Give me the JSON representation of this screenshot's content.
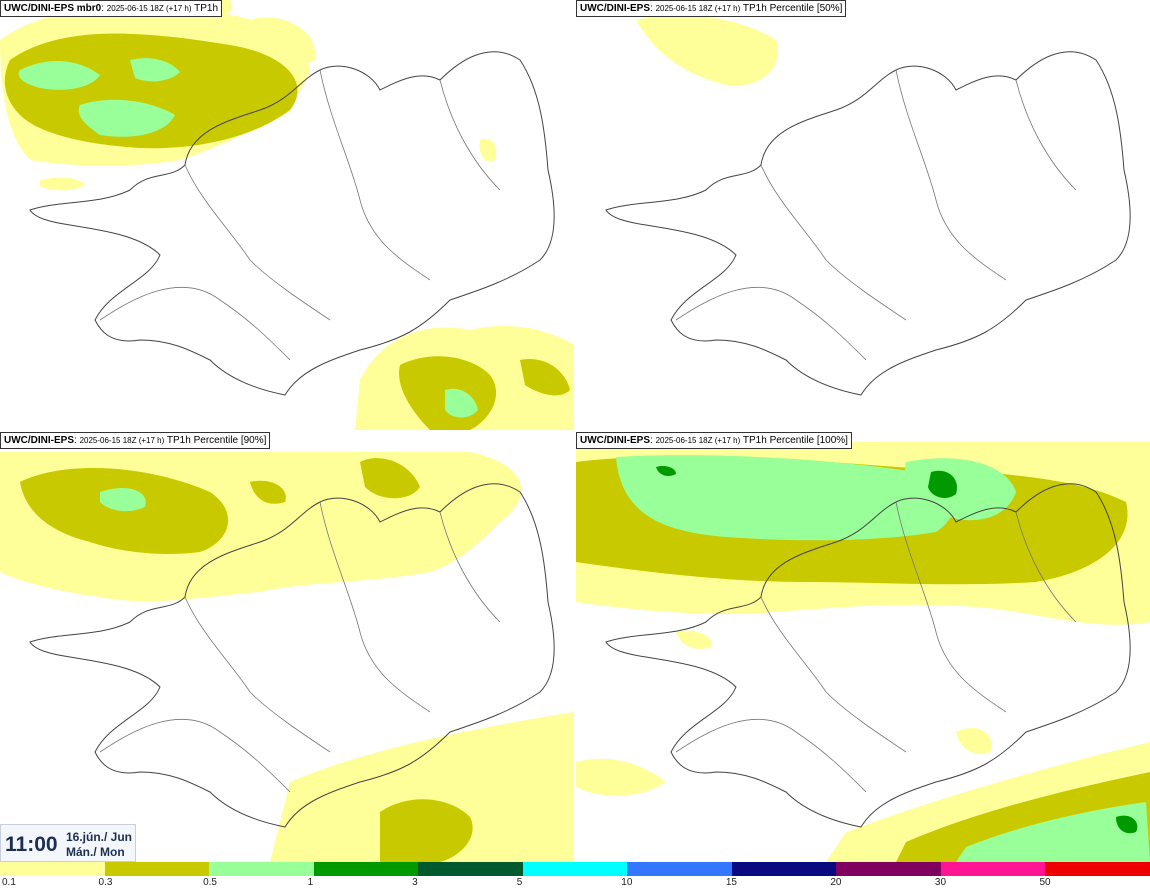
{
  "panels": [
    {
      "source": "UWC/DINI-EPS mbr0",
      "run": "2025-06-15 18Z (+17 h)",
      "field": "TP1h"
    },
    {
      "source": "UWC/DINI-EPS",
      "run": "2025-06-15 18Z (+17 h)",
      "field": "TP1h Percentile [50%]"
    },
    {
      "source": "UWC/DINI-EPS",
      "run": "2025-06-15 18Z (+17 h)",
      "field": "TP1h Percentile [90%]"
    },
    {
      "source": "UWC/DINI-EPS",
      "run": "2025-06-15 18Z (+17 h)",
      "field": "TP1h Percentile [100%]"
    }
  ],
  "valid_time": {
    "time": "11:00",
    "date": "16.jún./ Jun",
    "weekday": "Mán./ Mon"
  },
  "legend": {
    "labels": [
      "0.1",
      "0.3",
      "0.5",
      "1",
      "3",
      "5",
      "10",
      "15",
      "20",
      "30",
      "50"
    ],
    "colors": [
      "#ffff9a",
      "#c9c900",
      "#99ff99",
      "#009900",
      "#005a2e",
      "#00ffff",
      "#3377ff",
      "#0a0a80",
      "#800060",
      "#ff1493",
      "#ee0000"
    ]
  }
}
